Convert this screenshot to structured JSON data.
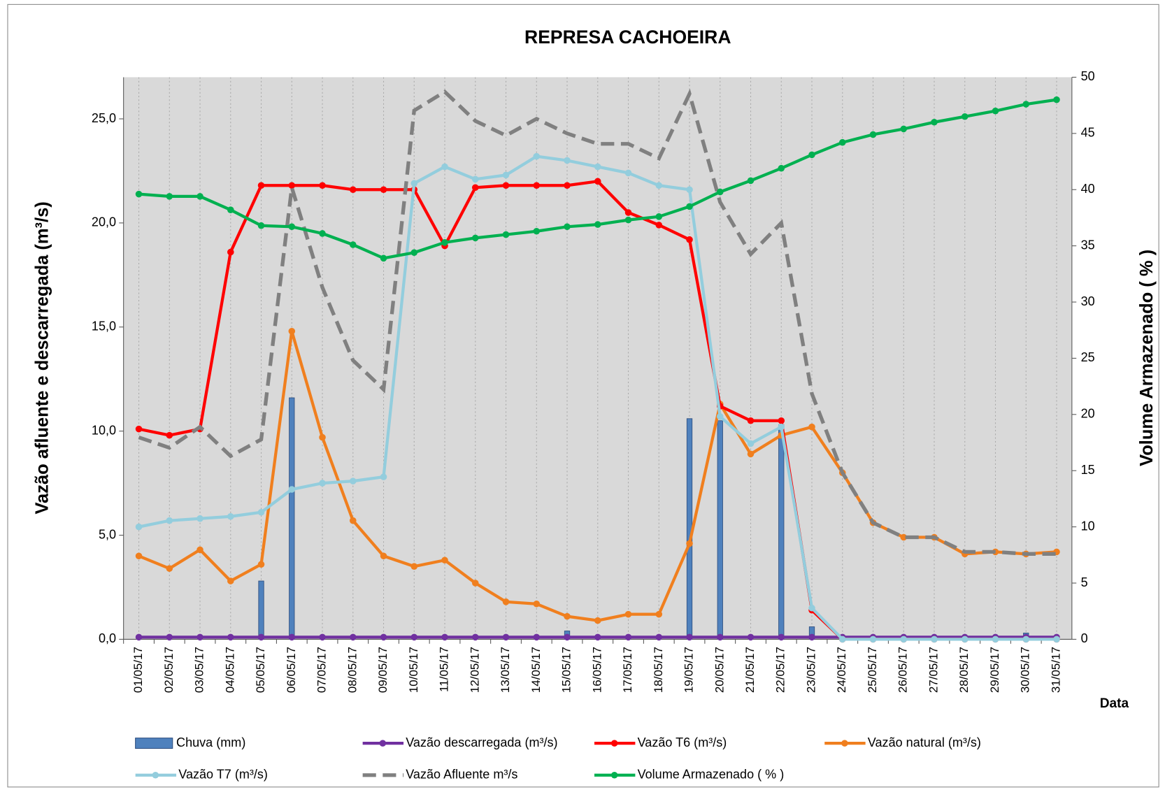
{
  "chart_data": {
    "type": "line",
    "title": "REPRESA CACHOEIRA",
    "x_label": "Data",
    "y_label": "Vazão afluente e descarregada (m³/s)",
    "y2_label": "Volume Armazenado ( % )",
    "categories": [
      "01/05/17",
      "02/05/17",
      "03/05/17",
      "04/05/17",
      "05/05/17",
      "06/05/17",
      "07/05/17",
      "08/05/17",
      "09/05/17",
      "10/05/17",
      "11/05/17",
      "12/05/17",
      "13/05/17",
      "14/05/17",
      "15/05/17",
      "16/05/17",
      "17/05/17",
      "18/05/17",
      "19/05/17",
      "20/05/17",
      "21/05/17",
      "22/05/17",
      "23/05/17",
      "24/05/17",
      "25/05/17",
      "26/05/17",
      "27/05/17",
      "28/05/17",
      "29/05/17",
      "30/05/17",
      "31/05/17"
    ],
    "ylim": [
      0,
      27
    ],
    "yticks": [
      {
        "value": 0,
        "label": "0,0"
      },
      {
        "value": 5,
        "label": "5,0"
      },
      {
        "value": 10,
        "label": "10,0"
      },
      {
        "value": 15,
        "label": "15,0"
      },
      {
        "value": 20,
        "label": "20,0"
      },
      {
        "value": 25,
        "label": "25,0"
      }
    ],
    "y2lim": [
      0,
      50
    ],
    "y2ticks": [
      0,
      5,
      10,
      15,
      20,
      25,
      30,
      35,
      40,
      45,
      50
    ],
    "grid": true,
    "series": [
      {
        "name": "Chuva (mm)",
        "type": "bar",
        "color": "#4f81bd",
        "values": [
          0,
          0,
          0,
          0,
          2.8,
          11.6,
          0,
          0,
          0,
          0,
          0,
          0,
          0,
          0,
          0.4,
          0,
          0,
          0,
          10.6,
          10.5,
          0,
          10.3,
          0.6,
          0,
          0,
          0,
          0,
          0,
          0,
          0.3,
          0
        ]
      },
      {
        "name": "Vazão descarregada (m³/s)",
        "color": "#7030a0",
        "values": [
          0.1,
          0.1,
          0.1,
          0.1,
          0.1,
          0.1,
          0.1,
          0.1,
          0.1,
          0.1,
          0.1,
          0.1,
          0.1,
          0.1,
          0.1,
          0.1,
          0.1,
          0.1,
          0.1,
          0.1,
          0.1,
          0.1,
          0.1,
          0.1,
          0.1,
          0.1,
          0.1,
          0.1,
          0.1,
          0.1,
          0.1
        ]
      },
      {
        "name": "Vazão T6  (m³/s)",
        "color": "#ff0000",
        "values": [
          10.1,
          9.8,
          10.1,
          18.6,
          21.8,
          21.8,
          21.8,
          21.6,
          21.6,
          21.6,
          18.9,
          21.7,
          21.8,
          21.8,
          21.8,
          22.0,
          20.5,
          19.9,
          19.2,
          11.2,
          10.5,
          10.5,
          1.4,
          0,
          0,
          0,
          0,
          0,
          0,
          0,
          0
        ]
      },
      {
        "name": "Vazão natural (m³/s)",
        "color": "#f07f1e",
        "values": [
          4.0,
          3.4,
          4.3,
          2.8,
          3.6,
          14.8,
          9.7,
          5.7,
          4.0,
          3.5,
          3.8,
          2.7,
          1.8,
          1.7,
          1.1,
          0.9,
          1.2,
          1.2,
          4.6,
          11.3,
          8.9,
          9.8,
          10.2,
          8.0,
          5.6,
          4.9,
          4.9,
          4.1,
          4.2,
          4.1,
          4.2
        ]
      },
      {
        "name": "Vazão T7 (m³/s)",
        "color": "#93cddd",
        "values": [
          5.4,
          5.7,
          5.8,
          5.9,
          6.1,
          7.2,
          7.5,
          7.6,
          7.8,
          21.9,
          22.7,
          22.1,
          22.3,
          23.2,
          23.0,
          22.7,
          22.4,
          21.8,
          21.6,
          10.7,
          9.4,
          10.2,
          1.5,
          0,
          0,
          0,
          0,
          0,
          0,
          0,
          0
        ]
      },
      {
        "name": "Vazão Afluente m³/s",
        "color": "#808080",
        "dashed": true,
        "values": [
          9.7,
          9.2,
          10.2,
          8.8,
          9.6,
          21.7,
          16.9,
          13.4,
          12.0,
          25.4,
          26.3,
          24.9,
          24.2,
          25.0,
          24.3,
          23.8,
          23.8,
          23.1,
          26.2,
          21.0,
          18.5,
          20.0,
          11.8,
          8.0,
          5.6,
          4.9,
          4.9,
          4.2,
          4.2,
          4.1,
          4.1
        ]
      },
      {
        "name": "Volume Armazenado ( % )",
        "color": "#00b050",
        "axis": "y2",
        "values": [
          39.6,
          39.4,
          39.4,
          38.2,
          36.8,
          36.7,
          36.1,
          35.1,
          33.9,
          34.4,
          35.3,
          35.7,
          36.0,
          36.3,
          36.7,
          36.9,
          37.3,
          37.6,
          38.5,
          39.8,
          40.8,
          41.9,
          43.1,
          44.2,
          44.9,
          45.4,
          46.0,
          46.5,
          47.0,
          47.6,
          48.0
        ]
      }
    ]
  }
}
